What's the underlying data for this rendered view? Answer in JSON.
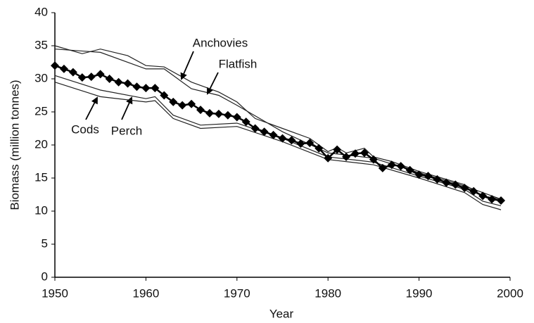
{
  "chart_data": {
    "type": "line",
    "xlabel": "Year",
    "ylabel": "Biomass (million tonnes)",
    "xlim": [
      1950,
      2000
    ],
    "xticks": [
      1950,
      1960,
      1970,
      1980,
      1990,
      2000
    ],
    "ylim": [
      0,
      40
    ],
    "yticks": [
      0,
      5,
      10,
      15,
      20,
      25,
      30,
      35,
      40
    ],
    "grid": false,
    "x": [
      1950,
      1951,
      1952,
      1953,
      1954,
      1955,
      1956,
      1957,
      1958,
      1959,
      1960,
      1961,
      1962,
      1963,
      1964,
      1965,
      1966,
      1967,
      1968,
      1969,
      1970,
      1971,
      1972,
      1973,
      1974,
      1975,
      1976,
      1977,
      1978,
      1979,
      1980,
      1981,
      1982,
      1983,
      1984,
      1985,
      1986,
      1987,
      1988,
      1989,
      1990,
      1991,
      1992,
      1993,
      1994,
      1995,
      1996,
      1997,
      1998,
      1999
    ],
    "series": [
      {
        "color": "#000000",
        "marker": "diamond",
        "values": [
          32,
          31.5,
          31,
          30.2,
          30.3,
          30.7,
          30,
          29.5,
          29.3,
          28.8,
          28.6,
          28.6,
          27.5,
          26.5,
          26,
          26.2,
          25.3,
          24.8,
          24.7,
          24.5,
          24.2,
          23.5,
          22.5,
          22,
          21.5,
          21,
          20.7,
          20.2,
          20.3,
          19.5,
          18,
          19.3,
          18.2,
          18.7,
          18.8,
          17.8,
          16.5,
          17,
          16.8,
          16.2,
          15.5,
          15.3,
          14.8,
          14.3,
          14,
          13.5,
          13,
          12.3,
          11.8,
          11.6
        ]
      },
      {
        "name": "Anchovies",
        "color": "#222222",
        "x": [
          1950,
          1953,
          1955,
          1958,
          1960,
          1962,
          1965,
          1968,
          1970,
          1972,
          1975,
          1978,
          1980,
          1981,
          1982,
          1984,
          1985,
          1987,
          1990,
          1993,
          1995,
          1997,
          1999
        ],
        "values": [
          35,
          33.8,
          34.5,
          33.5,
          32,
          31.8,
          29.5,
          28,
          26.5,
          24,
          22.5,
          21,
          19,
          19.6,
          18.8,
          19.5,
          18.2,
          17.5,
          16,
          14.8,
          14,
          12.3,
          11.8
        ]
      },
      {
        "name": "Flatfish",
        "color": "#222222",
        "x": [
          1950,
          1955,
          1960,
          1962,
          1965,
          1968,
          1970,
          1975,
          1980,
          1985,
          1990,
          1995,
          1999
        ],
        "values": [
          34.5,
          34,
          31.5,
          31.5,
          28.5,
          27.5,
          26,
          22,
          18.8,
          18,
          15.8,
          13.8,
          11.8
        ]
      },
      {
        "name": "Cods",
        "color": "#222222",
        "x": [
          1950,
          1955,
          1960,
          1961,
          1963,
          1966,
          1970,
          1975,
          1980,
          1985,
          1990,
          1995,
          1997,
          1999
        ],
        "values": [
          29.5,
          27.3,
          26.5,
          26.7,
          24,
          22.5,
          22.8,
          20.5,
          17.8,
          17,
          15,
          12.8,
          11,
          10.2
        ]
      },
      {
        "name": "Perch",
        "color": "#222222",
        "x": [
          1950,
          1955,
          1960,
          1961,
          1963,
          1966,
          1970,
          1975,
          1980,
          1985,
          1990,
          1995,
          1997,
          1999
        ],
        "values": [
          30.5,
          28.3,
          27,
          27.3,
          24.5,
          23,
          23.3,
          21,
          18.2,
          17.4,
          15.3,
          13.3,
          11.5,
          10.8
        ]
      }
    ]
  }
}
